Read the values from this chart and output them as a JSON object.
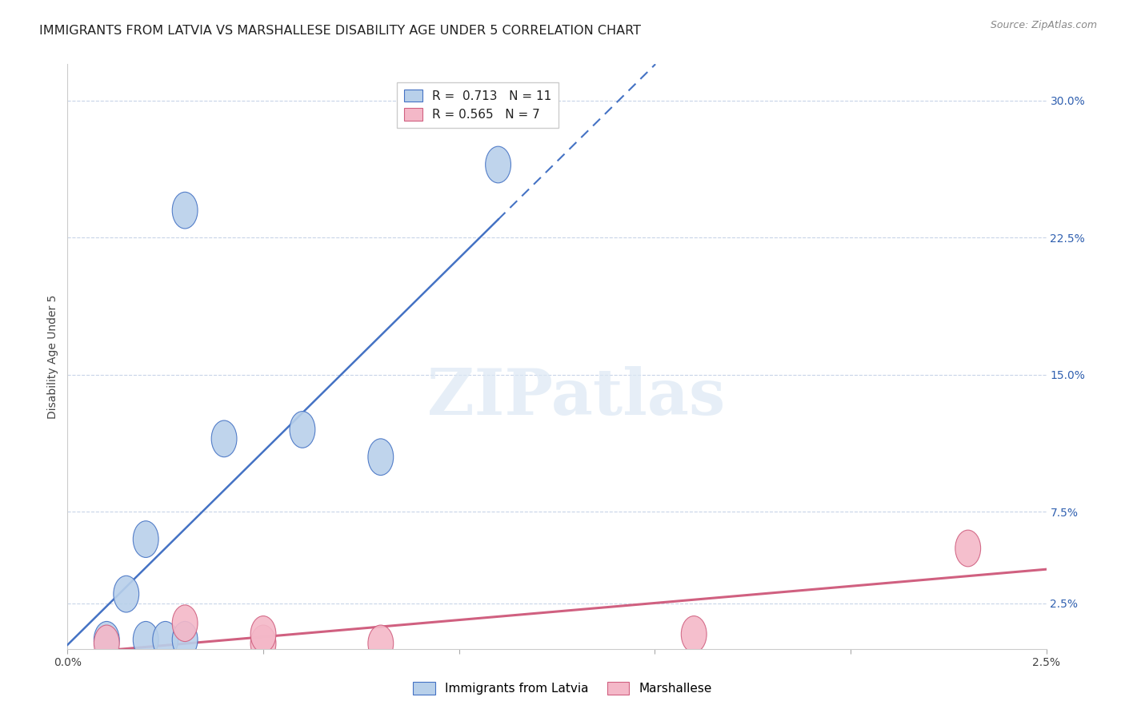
{
  "title": "IMMIGRANTS FROM LATVIA VS MARSHALLESE DISABILITY AGE UNDER 5 CORRELATION CHART",
  "source": "Source: ZipAtlas.com",
  "ylabel": "Disability Age Under 5",
  "r_latvia": 0.713,
  "n_latvia": 11,
  "r_marshallese": 0.565,
  "n_marshallese": 7,
  "latvia_color": "#b8d0ea",
  "latvia_line_color": "#4472c4",
  "marshallese_color": "#f4b8c8",
  "marshallese_line_color": "#d06080",
  "watermark_text": "ZIPatlas",
  "xlim": [
    0.0,
    0.025
  ],
  "ylim": [
    0.0,
    0.32
  ],
  "yticks_right": [
    0.025,
    0.075,
    0.15,
    0.225,
    0.3
  ],
  "ytick_labels_right": [
    "2.5%",
    "7.5%",
    "15.0%",
    "22.5%",
    "30.0%"
  ],
  "xticks": [
    0.0,
    0.005,
    0.01,
    0.015,
    0.02,
    0.025
  ],
  "xtick_labels": [
    "0.0%",
    "",
    "",
    "",
    "",
    "2.5%"
  ],
  "latvia_x": [
    0.001,
    0.0015,
    0.002,
    0.002,
    0.0025,
    0.003,
    0.003,
    0.004,
    0.006,
    0.008,
    0.011
  ],
  "latvia_y": [
    0.005,
    0.03,
    0.005,
    0.06,
    0.005,
    0.005,
    0.24,
    0.115,
    0.12,
    0.105,
    0.265
  ],
  "marshallese_x": [
    0.001,
    0.003,
    0.005,
    0.005,
    0.008,
    0.016,
    0.023
  ],
  "marshallese_y": [
    0.003,
    0.014,
    0.003,
    0.008,
    0.003,
    0.008,
    0.055
  ],
  "background_color": "#ffffff",
  "grid_color": "#c8d4e8",
  "title_fontsize": 11.5,
  "axis_label_fontsize": 10,
  "tick_fontsize": 10,
  "legend_fontsize": 11,
  "right_tick_color": "#3060b0"
}
